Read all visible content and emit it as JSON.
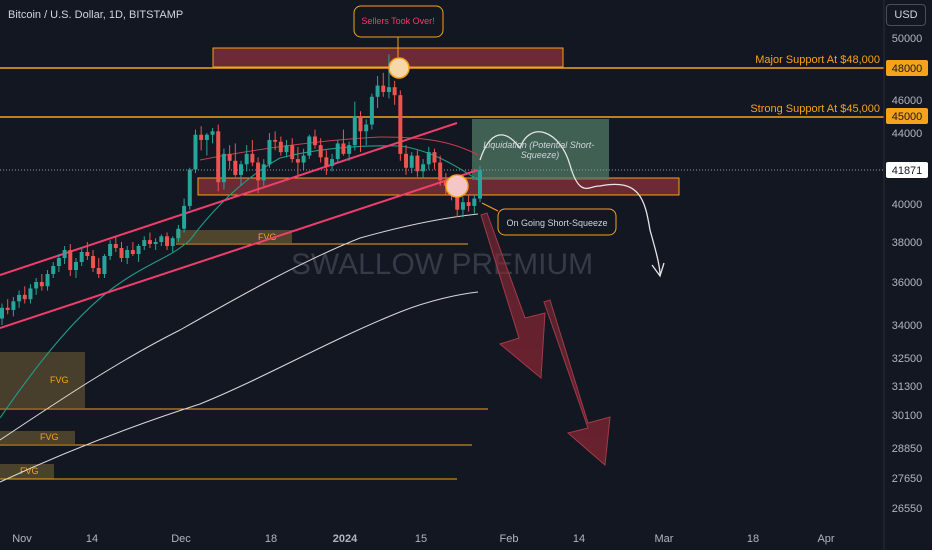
{
  "header": {
    "symbol_title": "Bitcoin / U.S. Dollar, 1D, BITSTAMP",
    "currency": "USD"
  },
  "watermark": "SWALLOW PREMIUM",
  "colors": {
    "background": "#131722",
    "up_candle": "#26a69a",
    "down_candle": "#ef5350",
    "level_line": "#f7a21b",
    "channel": "#f23d6b",
    "bearish_arrow": "#7a2230",
    "supply_zone": "#6b2a34",
    "liquidity_box": "#4f7a64",
    "fvg_box": "#5e5130",
    "ema_fast": "#1f9c8a",
    "ma_red": "#c2404f",
    "ma_white": "#d8d8d8",
    "axis_text": "#b2b5be",
    "last_price_bg": "#ffffff"
  },
  "chart_data": {
    "type": "candlestick",
    "price_axis_ticks": [
      50000,
      48000,
      46000,
      45000,
      44000,
      41871,
      40000,
      38000,
      36000,
      34000,
      32500,
      31300,
      30100,
      28850,
      27650,
      26550
    ],
    "time_axis_ticks": [
      "Nov",
      "14",
      "Dec",
      "18",
      "2024",
      "15",
      "Feb",
      "14",
      "Mar",
      "18",
      "Apr"
    ],
    "last_price": 41871,
    "levels": [
      {
        "label": "Major Support At $48,000",
        "price": 48000
      },
      {
        "label": "Strong Support At $45,000",
        "price": 45000
      }
    ],
    "annotations": [
      "Sellers Took Over!",
      "Liquidation (Potential Short-Squeeze)",
      "On Going Short-Squeeze"
    ],
    "fvg_labels": [
      "FVG",
      "FVG",
      "FVG",
      "FVG"
    ],
    "candles": [
      {
        "o": 34300,
        "h": 35000,
        "l": 34000,
        "c": 34800
      },
      {
        "o": 34800,
        "h": 35200,
        "l": 34500,
        "c": 34700
      },
      {
        "o": 34700,
        "h": 35300,
        "l": 34400,
        "c": 35100
      },
      {
        "o": 35100,
        "h": 35600,
        "l": 34800,
        "c": 35400
      },
      {
        "o": 35400,
        "h": 35800,
        "l": 35000,
        "c": 35200
      },
      {
        "o": 35200,
        "h": 35900,
        "l": 35000,
        "c": 35700
      },
      {
        "o": 35700,
        "h": 36200,
        "l": 35400,
        "c": 36000
      },
      {
        "o": 36000,
        "h": 36400,
        "l": 35600,
        "c": 35800
      },
      {
        "o": 35800,
        "h": 36600,
        "l": 35600,
        "c": 36400
      },
      {
        "o": 36400,
        "h": 37000,
        "l": 36200,
        "c": 36800
      },
      {
        "o": 36800,
        "h": 37400,
        "l": 36500,
        "c": 37200
      },
      {
        "o": 37200,
        "h": 37800,
        "l": 36900,
        "c": 37600
      },
      {
        "o": 37600,
        "h": 37900,
        "l": 36300,
        "c": 36600
      },
      {
        "o": 36600,
        "h": 37200,
        "l": 36200,
        "c": 37000
      },
      {
        "o": 37000,
        "h": 37700,
        "l": 36800,
        "c": 37500
      },
      {
        "o": 37500,
        "h": 38000,
        "l": 37100,
        "c": 37300
      },
      {
        "o": 37300,
        "h": 37600,
        "l": 36500,
        "c": 36700
      },
      {
        "o": 36700,
        "h": 37200,
        "l": 36200,
        "c": 36400
      },
      {
        "o": 36400,
        "h": 37400,
        "l": 36200,
        "c": 37300
      },
      {
        "o": 37300,
        "h": 38100,
        "l": 37100,
        "c": 37900
      },
      {
        "o": 37900,
        "h": 38300,
        "l": 37500,
        "c": 37700
      },
      {
        "o": 37700,
        "h": 38000,
        "l": 37000,
        "c": 37200
      },
      {
        "o": 37200,
        "h": 37800,
        "l": 36900,
        "c": 37600
      },
      {
        "o": 37600,
        "h": 38000,
        "l": 37300,
        "c": 37400
      },
      {
        "o": 37400,
        "h": 37900,
        "l": 37000,
        "c": 37800
      },
      {
        "o": 37800,
        "h": 38300,
        "l": 37600,
        "c": 38100
      },
      {
        "o": 38100,
        "h": 38500,
        "l": 37700,
        "c": 37900
      },
      {
        "o": 37900,
        "h": 38200,
        "l": 37600,
        "c": 38000
      },
      {
        "o": 38000,
        "h": 38400,
        "l": 37800,
        "c": 38300
      },
      {
        "o": 38300,
        "h": 38500,
        "l": 37600,
        "c": 37800
      },
      {
        "o": 37800,
        "h": 38300,
        "l": 37500,
        "c": 38200
      },
      {
        "o": 38200,
        "h": 38900,
        "l": 38000,
        "c": 38700
      },
      {
        "o": 38700,
        "h": 40300,
        "l": 38500,
        "c": 39900
      },
      {
        "o": 39900,
        "h": 42000,
        "l": 39700,
        "c": 41900
      },
      {
        "o": 41900,
        "h": 44200,
        "l": 41700,
        "c": 43900
      },
      {
        "o": 43900,
        "h": 44400,
        "l": 43000,
        "c": 43600
      },
      {
        "o": 43600,
        "h": 44000,
        "l": 42700,
        "c": 43900
      },
      {
        "o": 43900,
        "h": 44300,
        "l": 43400,
        "c": 44100
      },
      {
        "o": 44100,
        "h": 44500,
        "l": 40700,
        "c": 41200
      },
      {
        "o": 41200,
        "h": 43100,
        "l": 40800,
        "c": 42800
      },
      {
        "o": 42800,
        "h": 43300,
        "l": 41900,
        "c": 42400
      },
      {
        "o": 42400,
        "h": 43400,
        "l": 41500,
        "c": 41600
      },
      {
        "o": 41600,
        "h": 42400,
        "l": 41000,
        "c": 42200
      },
      {
        "o": 42200,
        "h": 43300,
        "l": 41800,
        "c": 42800
      },
      {
        "o": 42800,
        "h": 43600,
        "l": 42100,
        "c": 42300
      },
      {
        "o": 42300,
        "h": 42600,
        "l": 40600,
        "c": 41300
      },
      {
        "o": 41300,
        "h": 42500,
        "l": 41000,
        "c": 42200
      },
      {
        "o": 42200,
        "h": 44000,
        "l": 42000,
        "c": 43600
      },
      {
        "o": 43600,
        "h": 44100,
        "l": 43000,
        "c": 43500
      },
      {
        "o": 43500,
        "h": 43800,
        "l": 42700,
        "c": 42900
      },
      {
        "o": 42900,
        "h": 43600,
        "l": 42600,
        "c": 43300
      },
      {
        "o": 43300,
        "h": 43700,
        "l": 42300,
        "c": 42500
      },
      {
        "o": 42500,
        "h": 43200,
        "l": 41600,
        "c": 42300
      },
      {
        "o": 42300,
        "h": 43100,
        "l": 41900,
        "c": 42700
      },
      {
        "o": 42700,
        "h": 43900,
        "l": 42500,
        "c": 43800
      },
      {
        "o": 43800,
        "h": 44200,
        "l": 43100,
        "c": 43300
      },
      {
        "o": 43300,
        "h": 43700,
        "l": 42300,
        "c": 42600
      },
      {
        "o": 42600,
        "h": 43000,
        "l": 41600,
        "c": 42100
      },
      {
        "o": 42100,
        "h": 42800,
        "l": 41800,
        "c": 42500
      },
      {
        "o": 42500,
        "h": 43600,
        "l": 42300,
        "c": 43400
      },
      {
        "o": 43400,
        "h": 44200,
        "l": 42700,
        "c": 42800
      },
      {
        "o": 42800,
        "h": 43500,
        "l": 42400,
        "c": 43300
      },
      {
        "o": 43300,
        "h": 45900,
        "l": 43000,
        "c": 45000
      },
      {
        "o": 45000,
        "h": 45300,
        "l": 42900,
        "c": 44100
      },
      {
        "o": 44100,
        "h": 44800,
        "l": 43300,
        "c": 44500
      },
      {
        "o": 44500,
        "h": 46400,
        "l": 44200,
        "c": 46200
      },
      {
        "o": 46200,
        "h": 47500,
        "l": 45500,
        "c": 46900
      },
      {
        "o": 46900,
        "h": 47700,
        "l": 46200,
        "c": 46500
      },
      {
        "o": 46500,
        "h": 48900,
        "l": 46100,
        "c": 46800
      },
      {
        "o": 46800,
        "h": 47200,
        "l": 45700,
        "c": 46300
      },
      {
        "o": 46300,
        "h": 46600,
        "l": 42400,
        "c": 42800
      },
      {
        "o": 42800,
        "h": 43300,
        "l": 41600,
        "c": 42000
      },
      {
        "o": 42000,
        "h": 42900,
        "l": 41700,
        "c": 42700
      },
      {
        "o": 42700,
        "h": 43000,
        "l": 41500,
        "c": 41800
      },
      {
        "o": 41800,
        "h": 42500,
        "l": 41400,
        "c": 42200
      },
      {
        "o": 42200,
        "h": 43200,
        "l": 41900,
        "c": 42900
      },
      {
        "o": 42900,
        "h": 43100,
        "l": 41900,
        "c": 42300
      },
      {
        "o": 42300,
        "h": 42700,
        "l": 41000,
        "c": 41300
      },
      {
        "o": 41300,
        "h": 41700,
        "l": 40500,
        "c": 41000
      },
      {
        "o": 41000,
        "h": 41500,
        "l": 40200,
        "c": 40800
      },
      {
        "o": 40800,
        "h": 41100,
        "l": 39300,
        "c": 39700
      },
      {
        "o": 39700,
        "h": 40400,
        "l": 39300,
        "c": 40100
      },
      {
        "o": 40100,
        "h": 40500,
        "l": 39600,
        "c": 39900
      },
      {
        "o": 39900,
        "h": 40500,
        "l": 39500,
        "c": 40300
      },
      {
        "o": 40300,
        "h": 42100,
        "l": 40100,
        "c": 41871
      }
    ]
  }
}
